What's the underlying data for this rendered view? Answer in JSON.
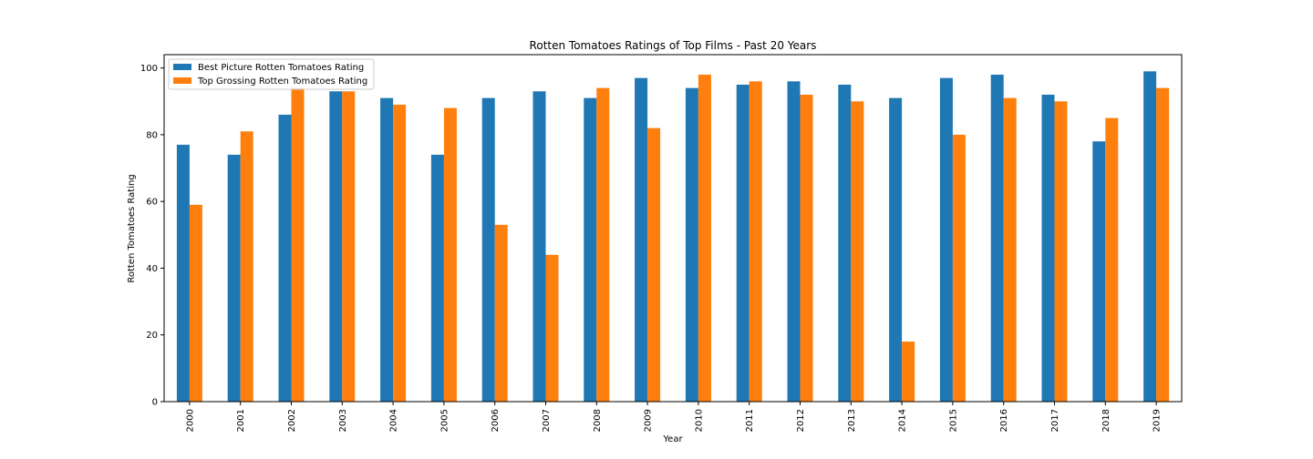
{
  "chart_data": {
    "type": "bar",
    "title": "Rotten Tomatoes Ratings of Top Films - Past 20 Years",
    "xlabel": "Year",
    "ylabel": "Rotten Tomatoes Rating",
    "categories": [
      "2000",
      "2001",
      "2002",
      "2003",
      "2004",
      "2005",
      "2006",
      "2007",
      "2008",
      "2009",
      "2010",
      "2011",
      "2012",
      "2013",
      "2014",
      "2015",
      "2016",
      "2017",
      "2018",
      "2019"
    ],
    "series": [
      {
        "name": "Best Picture Rotten Tomatoes Rating",
        "color": "#1f77b4",
        "values": [
          77,
          74,
          86,
          93,
          91,
          74,
          91,
          93,
          91,
          97,
          94,
          95,
          96,
          95,
          91,
          97,
          98,
          92,
          78,
          99
        ]
      },
      {
        "name": "Top Grossing Rotten Tomatoes Rating",
        "color": "#ff7f0e",
        "values": [
          59,
          81,
          94,
          93,
          89,
          88,
          53,
          44,
          94,
          82,
          98,
          96,
          92,
          90,
          18,
          80,
          91,
          90,
          85,
          94
        ]
      }
    ],
    "ylim": [
      0,
      104
    ],
    "yticks": [
      0,
      20,
      40,
      60,
      80,
      100
    ],
    "grid": false,
    "legend_position": "top-left"
  }
}
